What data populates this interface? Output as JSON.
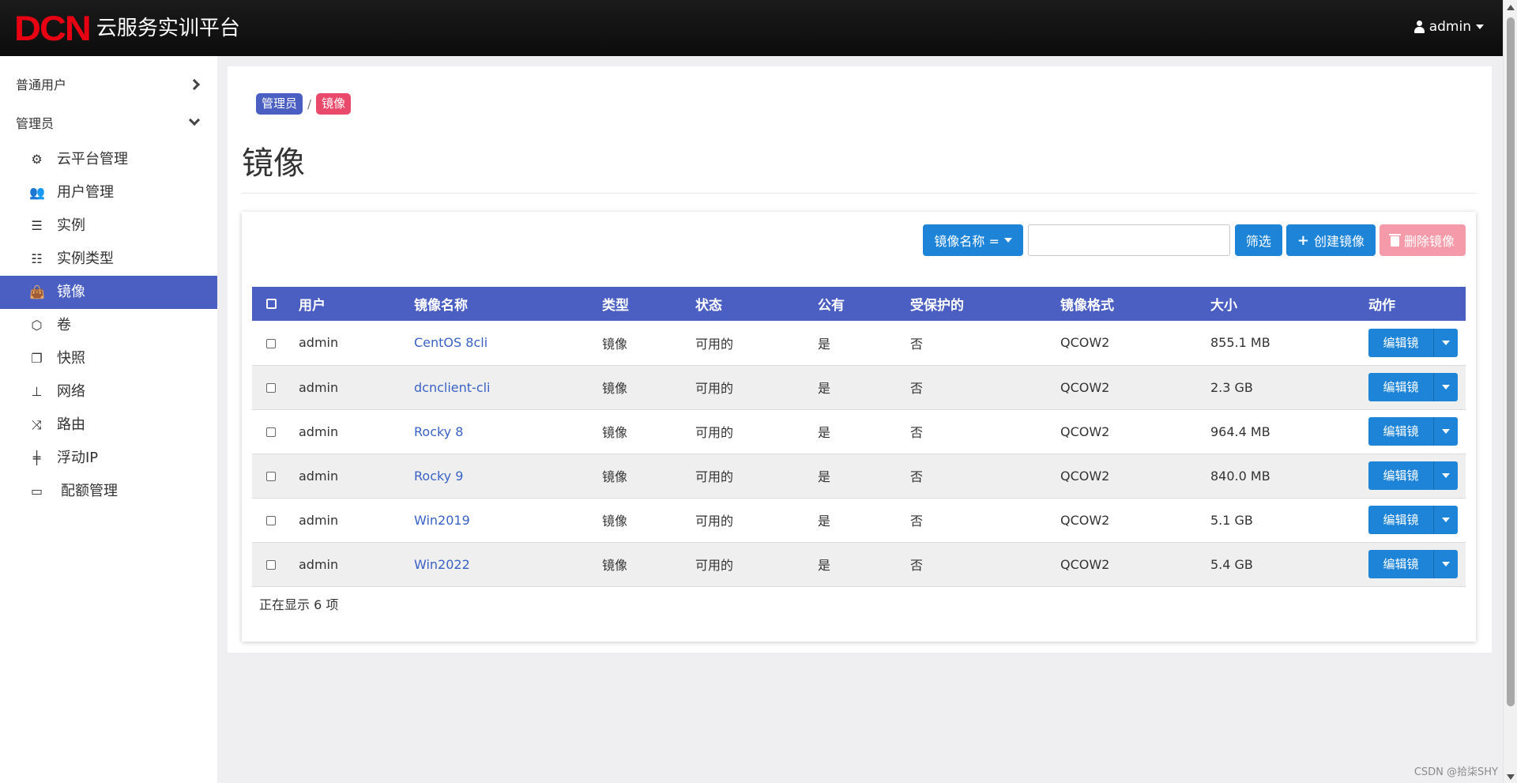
{
  "header": {
    "logo_text": "DCN",
    "title": "云服务实训平台",
    "user": "admin",
    "user_icon": "user-icon"
  },
  "sidebar": {
    "sections": [
      {
        "label": "普通用户",
        "expanded": false
      },
      {
        "label": "管理员",
        "expanded": true
      }
    ],
    "items": [
      {
        "label": "云平台管理",
        "icon": "gears-icon",
        "glyph": "⚙"
      },
      {
        "label": "用户管理",
        "icon": "users-icon",
        "glyph": "👥"
      },
      {
        "label": "实例",
        "icon": "server-icon",
        "glyph": "☰"
      },
      {
        "label": "实例类型",
        "icon": "list-icon",
        "glyph": "☷"
      },
      {
        "label": "镜像",
        "icon": "shopping-bag-icon",
        "glyph": "👜",
        "active": true
      },
      {
        "label": "卷",
        "icon": "cube-icon",
        "glyph": "⬡"
      },
      {
        "label": "快照",
        "icon": "copy-icon",
        "glyph": "❐"
      },
      {
        "label": "网络",
        "icon": "sitemap-icon",
        "glyph": "⊥"
      },
      {
        "label": "路由",
        "icon": "random-icon",
        "glyph": "⤨"
      },
      {
        "label": "浮动IP",
        "icon": "signpost-icon",
        "glyph": "╪"
      },
      {
        "label": "配额管理",
        "icon": "battery-icon",
        "glyph": "▭"
      }
    ]
  },
  "breadcrumb": {
    "parent": "管理员",
    "separator": "/",
    "current": "镜像"
  },
  "page_title": "镜像",
  "toolbar": {
    "filter_field": "镜像名称 =",
    "filter_value": "",
    "filter_button": "筛选",
    "create_button": "创建镜像",
    "delete_button": "删除镜像"
  },
  "table": {
    "headers": [
      "用户",
      "镜像名称",
      "类型",
      "状态",
      "公有",
      "受保护的",
      "镜像格式",
      "大小",
      "动作"
    ],
    "rows": [
      {
        "user": "admin",
        "name": "CentOS 8cli",
        "type": "镜像",
        "status": "可用的",
        "public": "是",
        "protected": "否",
        "format": "QCOW2",
        "size": "855.1 MB",
        "action": "编辑镜像"
      },
      {
        "user": "admin",
        "name": "dcnclient-cli",
        "type": "镜像",
        "status": "可用的",
        "public": "是",
        "protected": "否",
        "format": "QCOW2",
        "size": "2.3 GB",
        "action": "编辑镜像"
      },
      {
        "user": "admin",
        "name": "Rocky 8",
        "type": "镜像",
        "status": "可用的",
        "public": "是",
        "protected": "否",
        "format": "QCOW2",
        "size": "964.4 MB",
        "action": "编辑镜像"
      },
      {
        "user": "admin",
        "name": "Rocky 9",
        "type": "镜像",
        "status": "可用的",
        "public": "是",
        "protected": "否",
        "format": "QCOW2",
        "size": "840.0 MB",
        "action": "编辑镜像"
      },
      {
        "user": "admin",
        "name": "Win2019",
        "type": "镜像",
        "status": "可用的",
        "public": "是",
        "protected": "否",
        "format": "QCOW2",
        "size": "5.1 GB",
        "action": "编辑镜像"
      },
      {
        "user": "admin",
        "name": "Win2022",
        "type": "镜像",
        "status": "可用的",
        "public": "是",
        "protected": "否",
        "format": "QCOW2",
        "size": "5.4 GB",
        "action": "编辑镜像"
      }
    ],
    "footer": "正在显示 6 项"
  },
  "watermark": "CSDN @拾柒SHY",
  "colors": {
    "accent": "#4a5fc1",
    "button_blue": "#1d84d8",
    "delete_pink": "#f59aa9",
    "crumb_pink": "#e94a6c",
    "logo_red": "#e60012"
  }
}
